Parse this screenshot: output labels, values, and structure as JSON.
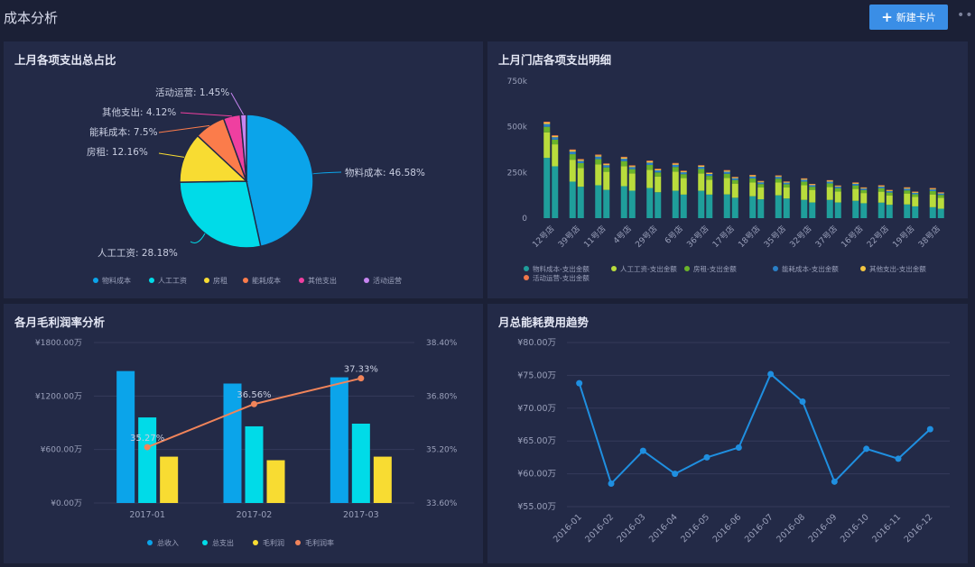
{
  "page": {
    "title": "成本分析",
    "new_card_label": "新建卡片"
  },
  "colors": {
    "bg": "#1b2036",
    "card": "#232a47",
    "primary_button": "#3a8ee6"
  },
  "chart_data": [
    {
      "type": "pie",
      "title": "上月各项支出总占比",
      "slices": [
        {
          "name": "物料成本",
          "value": 46.58,
          "label": "物料成本: 46.58%",
          "color": "#0ba4ea"
        },
        {
          "name": "人工工资",
          "value": 28.18,
          "label": "人工工资: 28.18%",
          "color": "#00dbe8"
        },
        {
          "name": "房租",
          "value": 12.16,
          "label": "房租: 12.16%",
          "color": "#f8dc32"
        },
        {
          "name": "能耗成本",
          "value": 7.5,
          "label": "能耗成本: 7.5%",
          "color": "#fb7c4b"
        },
        {
          "name": "其他支出",
          "value": 4.12,
          "label": "其他支出: 4.12%",
          "color": "#ef3fa0"
        },
        {
          "name": "活动运营",
          "value": 1.45,
          "label": "活动运营: 1.45%",
          "color": "#c785f0"
        }
      ],
      "legend": [
        "物料成本",
        "人工工资",
        "房租",
        "能耗成本",
        "其他支出",
        "活动运营"
      ]
    },
    {
      "type": "bar",
      "stacked": true,
      "title": "上月门店各项支出明细",
      "categories": [
        "12号店",
        "39号店",
        "11号店",
        "4号店",
        "29号店",
        "6号店",
        "36号店",
        "17号店",
        "18号店",
        "35号店",
        "32号店",
        "37号店",
        "16号店",
        "22号店",
        "19号店",
        "38号店"
      ],
      "yticks": [
        "0",
        "250k",
        "500k",
        "750k"
      ],
      "ylim": [
        0,
        750000
      ],
      "series": [
        {
          "name": "物料成本-支出金额",
          "color": "#1f9e9b",
          "values": [
            330000,
            200000,
            180000,
            175000,
            165000,
            150000,
            150000,
            130000,
            120000,
            125000,
            100000,
            100000,
            95000,
            85000,
            75000,
            60000
          ]
        },
        {
          "name": "人工工资-支出金额",
          "color": "#b9dc3c",
          "values": [
            140000,
            120000,
            115000,
            110000,
            100000,
            105000,
            95000,
            90000,
            75000,
            70000,
            80000,
            70000,
            65000,
            60000,
            60000,
            70000
          ]
        },
        {
          "name": "房租-支出金额",
          "color": "#6ab32a",
          "values": [
            30000,
            30000,
            28000,
            27000,
            26000,
            25000,
            24000,
            23000,
            22000,
            21000,
            20000,
            20000,
            19000,
            18000,
            17000,
            18000
          ]
        },
        {
          "name": "能耗成本-支出金额",
          "color": "#2a7fc6",
          "values": [
            15000,
            14000,
            14000,
            13000,
            13000,
            12000,
            12000,
            11000,
            11000,
            10000,
            10000,
            10000,
            9000,
            9000,
            9000,
            9000
          ]
        },
        {
          "name": "其他支出-支出金额",
          "color": "#f2c541",
          "values": [
            8000,
            8000,
            7000,
            7000,
            7000,
            6000,
            6000,
            6000,
            6000,
            5000,
            5000,
            5000,
            5000,
            5000,
            5000,
            5000
          ]
        },
        {
          "name": "活动运营-支出金额",
          "color": "#f0784a",
          "values": [
            5000,
            4000,
            4000,
            4000,
            4000,
            4000,
            3000,
            3000,
            3000,
            3000,
            3000,
            3000,
            3000,
            3000,
            3000,
            3000
          ]
        }
      ]
    },
    {
      "type": "bar",
      "title": "各月毛利润率分析",
      "categories": [
        "2017-01",
        "2017-02",
        "2017-03"
      ],
      "yticks_left": [
        "¥0.00万",
        "¥600.00万",
        "¥1200.00万",
        "¥1800.00万"
      ],
      "yticks_right": [
        "33.60%",
        "35.20%",
        "36.80%",
        "38.40%"
      ],
      "ylim": [
        0,
        1800
      ],
      "y2lim": [
        33.6,
        38.4
      ],
      "series": [
        {
          "name": "总收入",
          "color": "#0ba4ea",
          "values": [
            1480,
            1340,
            1410
          ]
        },
        {
          "name": "总支出",
          "color": "#00dbe8",
          "values": [
            960,
            860,
            890
          ]
        },
        {
          "name": "毛利润",
          "color": "#f8dc32",
          "values": [
            520,
            480,
            520
          ]
        },
        {
          "name": "毛利润率",
          "type": "line",
          "axis": "right",
          "color": "#f1845a",
          "values": [
            35.27,
            36.56,
            37.33
          ],
          "labels": [
            "35.27%",
            "36.56%",
            "37.33%"
          ]
        }
      ],
      "legend": [
        "总收入",
        "总支出",
        "毛利润",
        "毛利润率"
      ]
    },
    {
      "type": "line",
      "title": "月总能耗费用趋势",
      "categories": [
        "2016-01",
        "2016-02",
        "2016-03",
        "2016-04",
        "2016-05",
        "2016-06",
        "2016-07",
        "2016-08",
        "2016-09",
        "2016-10",
        "2016-11",
        "2016-12"
      ],
      "values": [
        73.8,
        58.5,
        63.5,
        60.0,
        62.5,
        64.0,
        75.2,
        71.0,
        58.8,
        63.8,
        62.3,
        66.8
      ],
      "yticks": [
        "¥55.00万",
        "¥60.00万",
        "¥65.00万",
        "¥70.00万",
        "¥75.00万",
        "¥80.00万"
      ],
      "ylim": [
        55,
        80
      ],
      "color": "#1f8fe0"
    }
  ]
}
